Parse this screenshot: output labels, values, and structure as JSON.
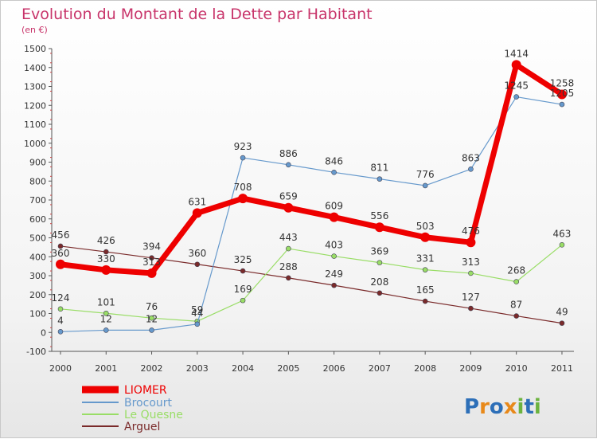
{
  "chart_data": {
    "type": "line",
    "title": "Evolution du Montant de la Dette par Habitant",
    "subtitle": "(en €)",
    "xlabel": "",
    "ylabel": "",
    "ylim": [
      -100,
      1500
    ],
    "yticks": [
      -100,
      0,
      100,
      200,
      300,
      400,
      500,
      600,
      700,
      800,
      900,
      1000,
      1100,
      1200,
      1300,
      1400,
      1500
    ],
    "categories": [
      "2000",
      "2001",
      "2002",
      "2003",
      "2004",
      "2005",
      "2006",
      "2007",
      "2008",
      "2009",
      "2010",
      "2011"
    ],
    "grid": false,
    "legend_position": "bottom-left",
    "series": [
      {
        "name": "LIOMER",
        "color": "#ee0000",
        "values": [
          360,
          330,
          313,
          631,
          708,
          659,
          609,
          556,
          503,
          476,
          1414,
          1258
        ]
      },
      {
        "name": "Brocourt",
        "color": "#6699cc",
        "values": [
          4,
          12,
          12,
          44,
          923,
          886,
          846,
          811,
          776,
          863,
          1245,
          1205
        ]
      },
      {
        "name": "Le Quesne",
        "color": "#99dd66",
        "values": [
          124,
          101,
          76,
          59,
          169,
          443,
          403,
          369,
          331,
          313,
          268,
          463
        ]
      },
      {
        "name": "Arguel",
        "color": "#7a2a2a",
        "values": [
          456,
          426,
          394,
          360,
          325,
          288,
          249,
          208,
          165,
          127,
          87,
          49
        ]
      }
    ]
  },
  "brand": {
    "letters": [
      "P",
      "r",
      "o",
      "x",
      "i",
      "t",
      "i"
    ],
    "colors": [
      "#2d6fb8",
      "#e8891a",
      "#2d6fb8",
      "#e8891a",
      "#6cb33f",
      "#2d6fb8",
      "#6cb33f"
    ]
  }
}
